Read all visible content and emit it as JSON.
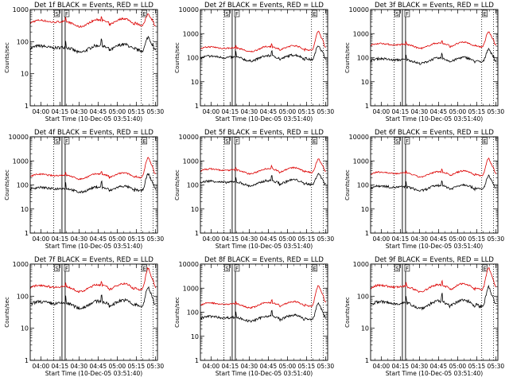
{
  "chart_data": {
    "type": "line",
    "yscale": "log",
    "ylabel": "Counts/sec",
    "xlabel": "Start Time (10-Dec-05 03:51:40)",
    "x_ticks": [
      {
        "label": "04:00",
        "min": 8.33
      },
      {
        "label": "04:15",
        "min": 23.33
      },
      {
        "label": "04:30",
        "min": 38.33
      },
      {
        "label": "04:45",
        "min": 53.33
      },
      {
        "label": "05:00",
        "min": 68.33
      },
      {
        "label": "05:15",
        "min": 83.33
      },
      {
        "label": "05:30",
        "min": 98.33
      }
    ],
    "x_range_min": [
      0,
      100
    ],
    "vertical_markers": [
      {
        "min": 18.5,
        "label": "S",
        "style": "dotted"
      },
      {
        "min": 26.2,
        "label": "F",
        "style": "box"
      },
      {
        "min": 87.3,
        "label": "E",
        "style": "dotted"
      },
      {
        "min": 96.5,
        "label": "",
        "style": "dotted"
      }
    ],
    "series_colors": {
      "events": "#000000",
      "lld": "#dd0000"
    },
    "panels": [
      {
        "title": "Det 1f BLACK = Events, RED = LLD",
        "ylim": [
          1,
          1000
        ],
        "y_ticks": [
          {
            "v": 1,
            "label": "1"
          },
          {
            "v": 10,
            "label": "10"
          },
          {
            "v": 100,
            "label": "100"
          },
          {
            "v": 1000,
            "label": "1000"
          }
        ],
        "events_base": 60,
        "lld_base": 380,
        "peak_min": 93,
        "events_peak": 150,
        "lld_peak": 800
      },
      {
        "title": "Det 2f BLACK = Events, RED = LLD",
        "ylim": [
          1,
          10000
        ],
        "y_ticks": [
          {
            "v": 1,
            "label": "1"
          },
          {
            "v": 10,
            "label": "10"
          },
          {
            "v": 100,
            "label": "100"
          },
          {
            "v": 1000,
            "label": "1000"
          },
          {
            "v": 10000,
            "label": "10000"
          }
        ],
        "events_base": 95,
        "lld_base": 230,
        "peak_min": 93,
        "events_peak": 350,
        "lld_peak": 1300
      },
      {
        "title": "Det 3f BLACK = Events, RED = LLD",
        "ylim": [
          1,
          10000
        ],
        "y_ticks": [
          {
            "v": 1,
            "label": "1"
          },
          {
            "v": 10,
            "label": "10"
          },
          {
            "v": 100,
            "label": "100"
          },
          {
            "v": 1000,
            "label": "1000"
          },
          {
            "v": 10000,
            "label": "10000"
          }
        ],
        "events_base": 75,
        "lld_base": 320,
        "peak_min": 93,
        "events_peak": 250,
        "lld_peak": 1300
      },
      {
        "title": "Det 4f BLACK = Events, RED = LLD",
        "ylim": [
          1,
          10000
        ],
        "y_ticks": [
          {
            "v": 1,
            "label": "1"
          },
          {
            "v": 10,
            "label": "10"
          },
          {
            "v": 100,
            "label": "100"
          },
          {
            "v": 1000,
            "label": "1000"
          },
          {
            "v": 10000,
            "label": "10000"
          }
        ],
        "events_base": 65,
        "lld_base": 230,
        "peak_min": 93,
        "events_peak": 300,
        "lld_peak": 1400
      },
      {
        "title": "Det 5f BLACK = Events, RED = LLD",
        "ylim": [
          1,
          10000
        ],
        "y_ticks": [
          {
            "v": 1,
            "label": "1"
          },
          {
            "v": 10,
            "label": "10"
          },
          {
            "v": 100,
            "label": "100"
          },
          {
            "v": 1000,
            "label": "1000"
          },
          {
            "v": 10000,
            "label": "10000"
          }
        ],
        "events_base": 120,
        "lld_base": 380,
        "peak_min": 93,
        "events_peak": 320,
        "lld_peak": 1300
      },
      {
        "title": "Det 6f BLACK = Events, RED = LLD",
        "ylim": [
          1,
          10000
        ],
        "y_ticks": [
          {
            "v": 1,
            "label": "1"
          },
          {
            "v": 10,
            "label": "10"
          },
          {
            "v": 100,
            "label": "100"
          },
          {
            "v": 1000,
            "label": "1000"
          },
          {
            "v": 10000,
            "label": "10000"
          }
        ],
        "events_base": 75,
        "lld_base": 280,
        "peak_min": 93,
        "events_peak": 250,
        "lld_peak": 1300
      },
      {
        "title": "Det 7f BLACK = Events, RED = LLD",
        "ylim": [
          1,
          1000
        ],
        "y_ticks": [
          {
            "v": 1,
            "label": "1"
          },
          {
            "v": 10,
            "label": "10"
          },
          {
            "v": 100,
            "label": "100"
          },
          {
            "v": 1000,
            "label": "1000"
          }
        ],
        "events_base": 55,
        "lld_base": 180,
        "peak_min": 93,
        "events_peak": 200,
        "lld_peak": 800
      },
      {
        "title": "Det 8f BLACK = Events, RED = LLD",
        "ylim": [
          1,
          10000
        ],
        "y_ticks": [
          {
            "v": 1,
            "label": "1"
          },
          {
            "v": 10,
            "label": "10"
          },
          {
            "v": 100,
            "label": "100"
          },
          {
            "v": 1000,
            "label": "1000"
          },
          {
            "v": 10000,
            "label": "10000"
          }
        ],
        "events_base": 55,
        "lld_base": 200,
        "peak_min": 93,
        "events_peak": 250,
        "lld_peak": 1300
      },
      {
        "title": "Det 9f BLACK = Events, RED = LLD",
        "ylim": [
          1,
          1000
        ],
        "y_ticks": [
          {
            "v": 1,
            "label": "1"
          },
          {
            "v": 10,
            "label": "10"
          },
          {
            "v": 100,
            "label": "100"
          },
          {
            "v": 1000,
            "label": "1000"
          }
        ],
        "events_base": 55,
        "lld_base": 180,
        "peak_min": 93,
        "events_peak": 200,
        "lld_peak": 800
      }
    ]
  }
}
